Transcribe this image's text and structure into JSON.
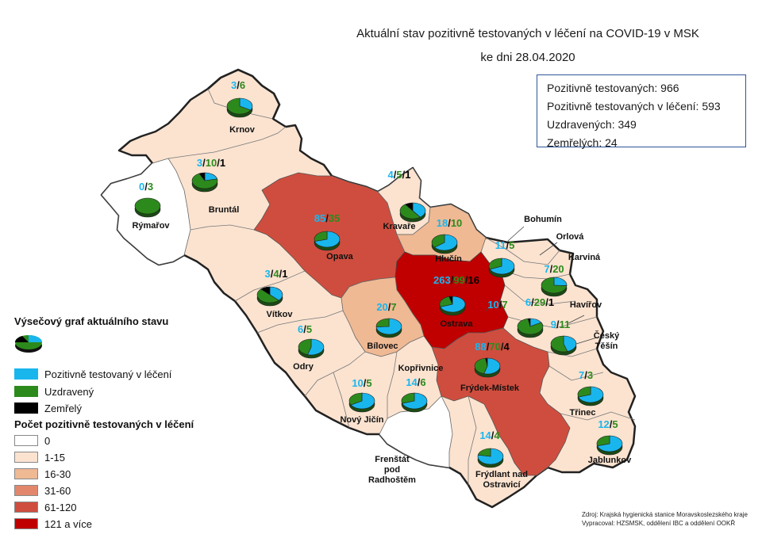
{
  "title_line1": "Aktuální stav pozitivně testovaných v léčení na COVID-19 v MSK",
  "title_line2": "ke dni 28.04.2020",
  "stats": [
    "Pozitivně testovaných: 966",
    "Pozitivně testovaných v léčení: 593",
    "Uzdravených: 349",
    "Zemřelých: 24"
  ],
  "legend": {
    "pie_title": "Výsečový graf aktuálního stavu",
    "pie_items": [
      {
        "label": "Pozitivně testovaný v léčení",
        "color": "#19b6ee"
      },
      {
        "label": "Uzdravený",
        "color": "#2c8a1c"
      },
      {
        "label": "Zemřelý",
        "color": "#000000"
      }
    ],
    "count_title": "Počet pozitivně testovaných v léčení",
    "count_items": [
      {
        "label": "0",
        "color": "#ffffff"
      },
      {
        "label": "1-15",
        "color": "#fbe3d0"
      },
      {
        "label": "16-30",
        "color": "#efb994"
      },
      {
        "label": "31-60",
        "color": "#e2876c"
      },
      {
        "label": "61-120",
        "color": "#cf4d3e"
      },
      {
        "label": "121 a více",
        "color": "#c00000"
      }
    ]
  },
  "districts": [
    {
      "name": "Krnov",
      "treated": 3,
      "recovered": 6,
      "deaths": 0
    },
    {
      "name": "Bruntál",
      "treated": 3,
      "recovered": 10,
      "deaths": 1
    },
    {
      "name": "Rýmařov",
      "treated": 0,
      "recovered": 3,
      "deaths": 0
    },
    {
      "name": "Opava",
      "treated": 85,
      "recovered": 35,
      "deaths": 0
    },
    {
      "name": "Kravaře",
      "treated": 4,
      "recovered": 5,
      "deaths": 1
    },
    {
      "name": "Hlučín",
      "treated": 18,
      "recovered": 10,
      "deaths": 0
    },
    {
      "name": "Vítkov",
      "treated": 3,
      "recovered": 4,
      "deaths": 1
    },
    {
      "name": "Ostrava",
      "treated": 263,
      "recovered": 99,
      "deaths": 16
    },
    {
      "name": "Bohumín",
      "treated": 11,
      "recovered": 5,
      "deaths": 0
    },
    {
      "name": "Orlová",
      "treated": 0,
      "recovered": 0,
      "deaths": 0
    },
    {
      "name": "Karviná",
      "treated": 7,
      "recovered": 20,
      "deaths": 0
    },
    {
      "name": "Havířov",
      "treated": 6,
      "recovered": 29,
      "deaths": 1
    },
    {
      "name": "Bílovec",
      "treated": 20,
      "recovered": 7,
      "deaths": 0
    },
    {
      "name": "Odry",
      "treated": 6,
      "recovered": 5,
      "deaths": 0
    },
    {
      "name": "Český Těšín",
      "treated": 9,
      "recovered": 11,
      "deaths": 0
    },
    {
      "name": "Frýdek-Místek",
      "treated": 88,
      "recovered": 70,
      "deaths": 4
    },
    {
      "name": "Kopřivnice",
      "treated": 14,
      "recovered": 6,
      "deaths": 0
    },
    {
      "name": "Nový Jičín",
      "treated": 10,
      "recovered": 5,
      "deaths": 0
    },
    {
      "name": "Třinec",
      "treated": 7,
      "recovered": 3,
      "deaths": 0
    },
    {
      "name": "Frenštát pod Radhoštěm",
      "treated": 0,
      "recovered": 0,
      "deaths": 0
    },
    {
      "name": "Frýdlant nad Ostravicí",
      "treated": 14,
      "recovered": 4,
      "deaths": 0
    },
    {
      "name": "Jablunkov",
      "treated": 12,
      "recovered": 5,
      "deaths": 0
    }
  ],
  "ostrava_extra": "10/7",
  "source_line1": "Zdroj: Krajská hygienická stanice Moravskoslezského kraje",
  "source_line2": "Vypracoval: HZSMSK, oddělení IBC a oddělení OOKŘ"
}
